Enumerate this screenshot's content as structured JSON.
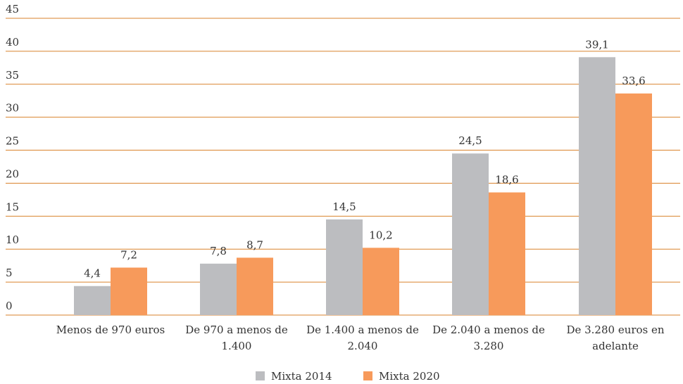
{
  "chart_data": {
    "type": "bar",
    "categories": [
      [
        "Menos de 970 euros"
      ],
      [
        "De 970 a menos de",
        "1.400"
      ],
      [
        "De 1.400 a menos de",
        "2.040"
      ],
      [
        "De 2.040 a menos de",
        "3.280"
      ],
      [
        "De 3.280 euros en",
        "adelante"
      ]
    ],
    "series": [
      {
        "name": "Mixta 2014",
        "color": "#bcbdc0",
        "values": [
          4.4,
          7.8,
          14.5,
          24.5,
          39.1
        ],
        "labels": [
          "4,4",
          "7,8",
          "14,5",
          "24,5",
          "39,1"
        ]
      },
      {
        "name": "Mixta 2020",
        "color": "#f79a5b",
        "values": [
          7.2,
          8.7,
          10.2,
          18.6,
          33.6
        ],
        "labels": [
          "7,2",
          "8,7",
          "10,2",
          "18,6",
          "33,6"
        ]
      }
    ],
    "yticks": [
      0,
      5,
      10,
      15,
      20,
      25,
      30,
      35,
      40,
      45
    ],
    "ylim": [
      0,
      45
    ],
    "grid": true,
    "gridline_color": "#d9822b",
    "legend_position": "bottom-center",
    "title": "",
    "xlabel": "",
    "ylabel": ""
  }
}
